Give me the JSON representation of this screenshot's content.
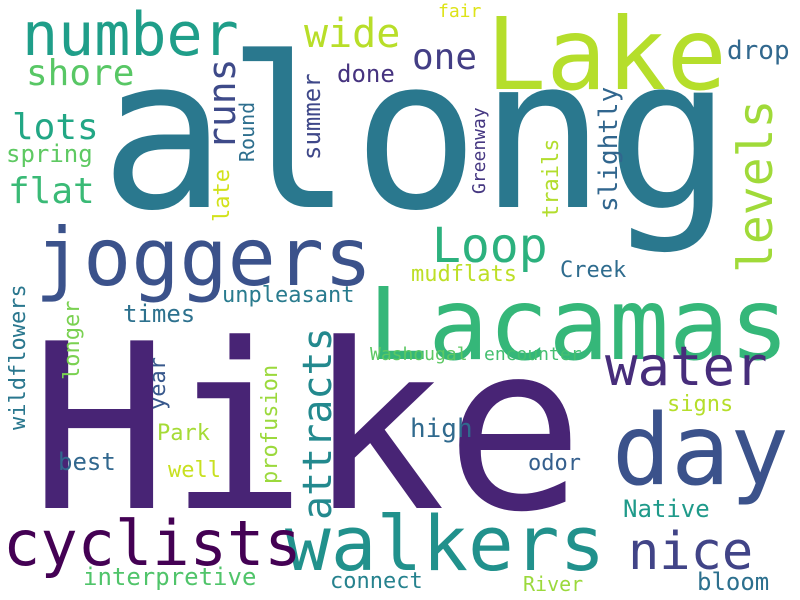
{
  "words": [
    {
      "text": "Hike",
      "color": "#482475"
    },
    {
      "text": "along",
      "color": "#2a788e"
    },
    {
      "text": "Lacamas",
      "color": "#35b779"
    },
    {
      "text": "Lake",
      "color": "#b5de2b"
    },
    {
      "text": "joggers",
      "color": "#3b528b"
    },
    {
      "text": "walkers",
      "color": "#21918c"
    },
    {
      "text": "day",
      "color": "#3b528b"
    },
    {
      "text": "cyclists",
      "color": "#440154"
    },
    {
      "text": "number",
      "color": "#1f9e89"
    },
    {
      "text": "nice",
      "color": "#414487"
    },
    {
      "text": "water",
      "color": "#472d7b"
    },
    {
      "text": "levels",
      "color": "#a0da39"
    },
    {
      "text": "Loop",
      "color": "#2cb17e"
    },
    {
      "text": "attracts",
      "color": "#23898e"
    },
    {
      "text": "runs",
      "color": "#3e4a89"
    },
    {
      "text": "wide",
      "color": "#b8de29"
    },
    {
      "text": "one",
      "color": "#433e85"
    },
    {
      "text": "shore",
      "color": "#58c765"
    },
    {
      "text": "lots",
      "color": "#22a785"
    },
    {
      "text": "flat",
      "color": "#3aba76"
    },
    {
      "text": "spring",
      "color": "#5ec962"
    },
    {
      "text": "drop",
      "color": "#31688e"
    },
    {
      "text": "done",
      "color": "#46337f"
    },
    {
      "text": "summer",
      "color": "#3f4889"
    },
    {
      "text": "Round",
      "color": "#2e6f8e"
    },
    {
      "text": "late",
      "color": "#d2e21b"
    },
    {
      "text": "Greenway",
      "color": "#453781"
    },
    {
      "text": "trails",
      "color": "#b2dd2d"
    },
    {
      "text": "slightly",
      "color": "#31668e"
    },
    {
      "text": "fair",
      "color": "#dde318"
    },
    {
      "text": "mudflats",
      "color": "#bddf26"
    },
    {
      "text": "Creek",
      "color": "#2f6c8e"
    },
    {
      "text": "unpleasant",
      "color": "#297b8e"
    },
    {
      "text": "times",
      "color": "#2d718e"
    },
    {
      "text": "wildflowers",
      "color": "#2a778e"
    },
    {
      "text": "longer",
      "color": "#7ad151"
    },
    {
      "text": "year",
      "color": "#38588c"
    },
    {
      "text": "profusion",
      "color": "#9bd93c"
    },
    {
      "text": "Washougal",
      "color": "#5cc863"
    },
    {
      "text": "encounter",
      "color": "#44bf70"
    },
    {
      "text": "signs",
      "color": "#b5de2b"
    },
    {
      "text": "high",
      "color": "#306a8e"
    },
    {
      "text": "Park",
      "color": "#a5db36"
    },
    {
      "text": "best",
      "color": "#31678e"
    },
    {
      "text": "well",
      "color": "#c8e020"
    },
    {
      "text": "odor",
      "color": "#355f8d"
    },
    {
      "text": "Native",
      "color": "#1f9a8a"
    },
    {
      "text": "interpretive",
      "color": "#50c46a"
    },
    {
      "text": "connect",
      "color": "#26828e"
    },
    {
      "text": "River",
      "color": "#9bd93c"
    },
    {
      "text": "bloom",
      "color": "#2d708e"
    }
  ]
}
